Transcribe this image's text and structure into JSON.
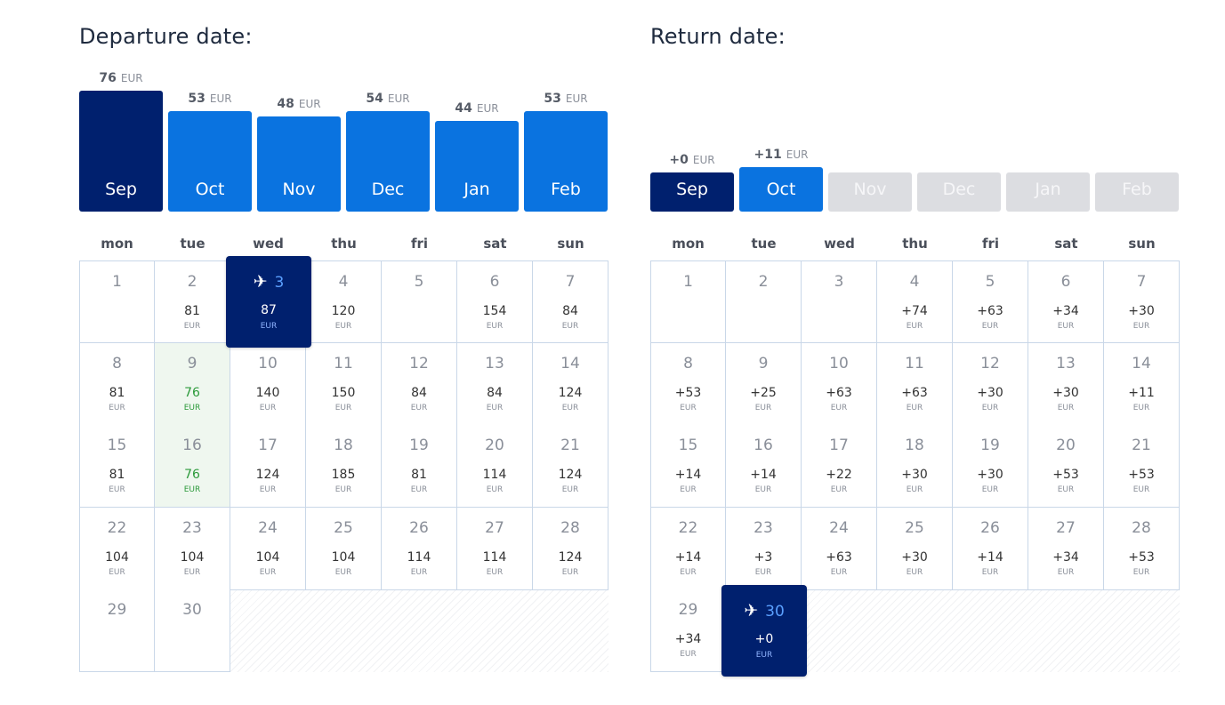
{
  "departure": {
    "title": "Departure date:",
    "months": [
      {
        "label": "Sep",
        "price": "76",
        "currency": "EUR",
        "state": "selected",
        "level": 1.0
      },
      {
        "label": "Oct",
        "price": "53",
        "currency": "EUR",
        "state": "available",
        "level": 0.83
      },
      {
        "label": "Nov",
        "price": "48",
        "currency": "EUR",
        "state": "available",
        "level": 0.79
      },
      {
        "label": "Dec",
        "price": "54",
        "currency": "EUR",
        "state": "available",
        "level": 0.83
      },
      {
        "label": "Jan",
        "price": "44",
        "currency": "EUR",
        "state": "available",
        "level": 0.75
      },
      {
        "label": "Feb",
        "price": "53",
        "currency": "EUR",
        "state": "available",
        "level": 0.83
      }
    ],
    "weekdays": [
      "mon",
      "tue",
      "wed",
      "thu",
      "fri",
      "sat",
      "sun"
    ],
    "first_weekday_index": 0,
    "days": [
      {
        "day": "1",
        "price": "",
        "currency": ""
      },
      {
        "day": "2",
        "price": "81",
        "currency": "EUR"
      },
      {
        "day": "3",
        "price": "87",
        "currency": "EUR",
        "selected": true
      },
      {
        "day": "4",
        "price": "120",
        "currency": "EUR"
      },
      {
        "day": "5",
        "price": "",
        "currency": ""
      },
      {
        "day": "6",
        "price": "154",
        "currency": "EUR"
      },
      {
        "day": "7",
        "price": "84",
        "currency": "EUR"
      },
      {
        "day": "8",
        "price": "81",
        "currency": "EUR"
      },
      {
        "day": "9",
        "price": "76",
        "currency": "EUR",
        "cheapest": true
      },
      {
        "day": "10",
        "price": "140",
        "currency": "EUR"
      },
      {
        "day": "11",
        "price": "150",
        "currency": "EUR"
      },
      {
        "day": "12",
        "price": "84",
        "currency": "EUR"
      },
      {
        "day": "13",
        "price": "84",
        "currency": "EUR"
      },
      {
        "day": "14",
        "price": "124",
        "currency": "EUR"
      },
      {
        "day": "15",
        "price": "81",
        "currency": "EUR"
      },
      {
        "day": "16",
        "price": "76",
        "currency": "EUR",
        "cheapest": true
      },
      {
        "day": "17",
        "price": "124",
        "currency": "EUR"
      },
      {
        "day": "18",
        "price": "185",
        "currency": "EUR"
      },
      {
        "day": "19",
        "price": "81",
        "currency": "EUR"
      },
      {
        "day": "20",
        "price": "114",
        "currency": "EUR"
      },
      {
        "day": "21",
        "price": "124",
        "currency": "EUR"
      },
      {
        "day": "22",
        "price": "104",
        "currency": "EUR"
      },
      {
        "day": "23",
        "price": "104",
        "currency": "EUR"
      },
      {
        "day": "24",
        "price": "104",
        "currency": "EUR"
      },
      {
        "day": "25",
        "price": "104",
        "currency": "EUR"
      },
      {
        "day": "26",
        "price": "114",
        "currency": "EUR"
      },
      {
        "day": "27",
        "price": "114",
        "currency": "EUR"
      },
      {
        "day": "28",
        "price": "124",
        "currency": "EUR"
      },
      {
        "day": "29",
        "price": "",
        "currency": ""
      },
      {
        "day": "30",
        "price": "",
        "currency": ""
      }
    ]
  },
  "return": {
    "title": "Return date:",
    "months": [
      {
        "label": "Sep",
        "price": "+0",
        "currency": "EUR",
        "state": "selected",
        "level": 0.32
      },
      {
        "label": "Oct",
        "price": "+11",
        "currency": "EUR",
        "state": "available",
        "level": 0.37
      },
      {
        "label": "Nov",
        "price": "",
        "currency": "",
        "state": "disabled",
        "level": 0.32
      },
      {
        "label": "Dec",
        "price": "",
        "currency": "",
        "state": "disabled",
        "level": 0.32
      },
      {
        "label": "Jan",
        "price": "",
        "currency": "",
        "state": "disabled",
        "level": 0.32
      },
      {
        "label": "Feb",
        "price": "",
        "currency": "",
        "state": "disabled",
        "level": 0.32
      }
    ],
    "weekdays": [
      "mon",
      "tue",
      "wed",
      "thu",
      "fri",
      "sat",
      "sun"
    ],
    "first_weekday_index": 0,
    "days": [
      {
        "day": "1",
        "price": "",
        "currency": ""
      },
      {
        "day": "2",
        "price": "",
        "currency": ""
      },
      {
        "day": "3",
        "price": "",
        "currency": ""
      },
      {
        "day": "4",
        "price": "+74",
        "currency": "EUR"
      },
      {
        "day": "5",
        "price": "+63",
        "currency": "EUR"
      },
      {
        "day": "6",
        "price": "+34",
        "currency": "EUR"
      },
      {
        "day": "7",
        "price": "+30",
        "currency": "EUR"
      },
      {
        "day": "8",
        "price": "+53",
        "currency": "EUR"
      },
      {
        "day": "9",
        "price": "+25",
        "currency": "EUR"
      },
      {
        "day": "10",
        "price": "+63",
        "currency": "EUR"
      },
      {
        "day": "11",
        "price": "+63",
        "currency": "EUR"
      },
      {
        "day": "12",
        "price": "+30",
        "currency": "EUR"
      },
      {
        "day": "13",
        "price": "+30",
        "currency": "EUR"
      },
      {
        "day": "14",
        "price": "+11",
        "currency": "EUR"
      },
      {
        "day": "15",
        "price": "+14",
        "currency": "EUR"
      },
      {
        "day": "16",
        "price": "+14",
        "currency": "EUR"
      },
      {
        "day": "17",
        "price": "+22",
        "currency": "EUR"
      },
      {
        "day": "18",
        "price": "+30",
        "currency": "EUR"
      },
      {
        "day": "19",
        "price": "+30",
        "currency": "EUR"
      },
      {
        "day": "20",
        "price": "+53",
        "currency": "EUR"
      },
      {
        "day": "21",
        "price": "+53",
        "currency": "EUR"
      },
      {
        "day": "22",
        "price": "+14",
        "currency": "EUR"
      },
      {
        "day": "23",
        "price": "+3",
        "currency": "EUR"
      },
      {
        "day": "24",
        "price": "+63",
        "currency": "EUR"
      },
      {
        "day": "25",
        "price": "+30",
        "currency": "EUR"
      },
      {
        "day": "26",
        "price": "+14",
        "currency": "EUR"
      },
      {
        "day": "27",
        "price": "+34",
        "currency": "EUR"
      },
      {
        "day": "28",
        "price": "+53",
        "currency": "EUR"
      },
      {
        "day": "29",
        "price": "+34",
        "currency": "EUR"
      },
      {
        "day": "30",
        "price": "+0",
        "currency": "EUR",
        "selected": true
      }
    ]
  },
  "icons": {
    "selected_day": "plane-icon",
    "plane_glyph": "✈"
  },
  "colors": {
    "selected": "#00206e",
    "available": "#0a73e0",
    "disabled": "#dcdde1",
    "cheapest": "#2c9a3b"
  }
}
